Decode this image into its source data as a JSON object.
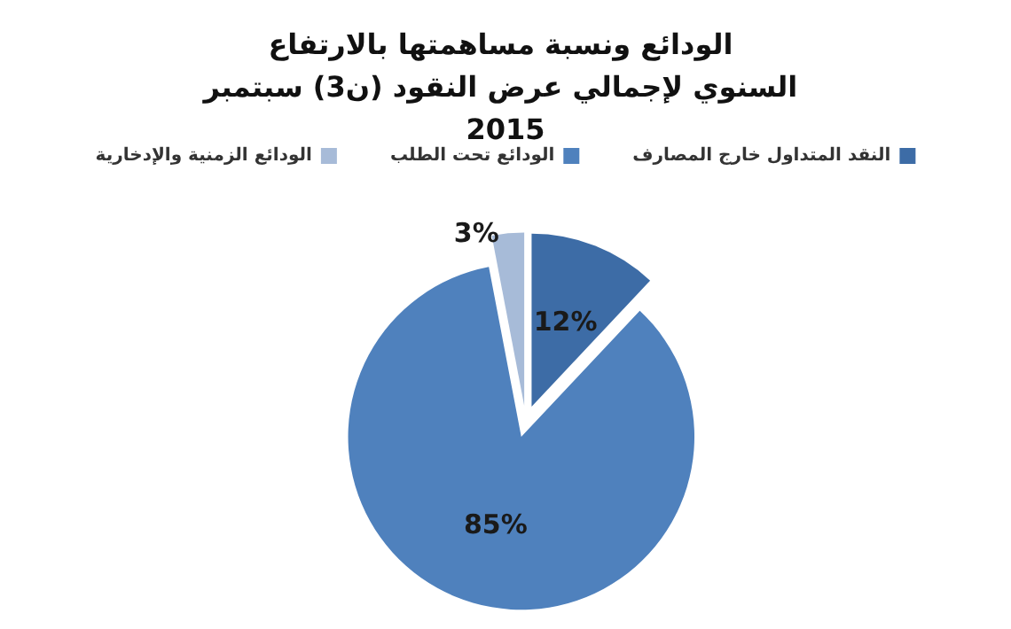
{
  "chart_data": {
    "type": "pie",
    "title": "الودائع ونسبة مساهمتها بالارتفاع السنوي لإجمالي عرض النقود (ن3) سبتمبر 2015",
    "categories": [
      "النقد المتداول خارج المصارف",
      "الودائع تحت الطلب",
      "الودائع الزمنية والإدخارية"
    ],
    "values": [
      12,
      85,
      3
    ],
    "colors": [
      "#3d6ca6",
      "#4f81bd",
      "#a7bbd8"
    ],
    "value_labels": [
      "12%",
      "85%",
      "3%"
    ],
    "legend": "top"
  }
}
